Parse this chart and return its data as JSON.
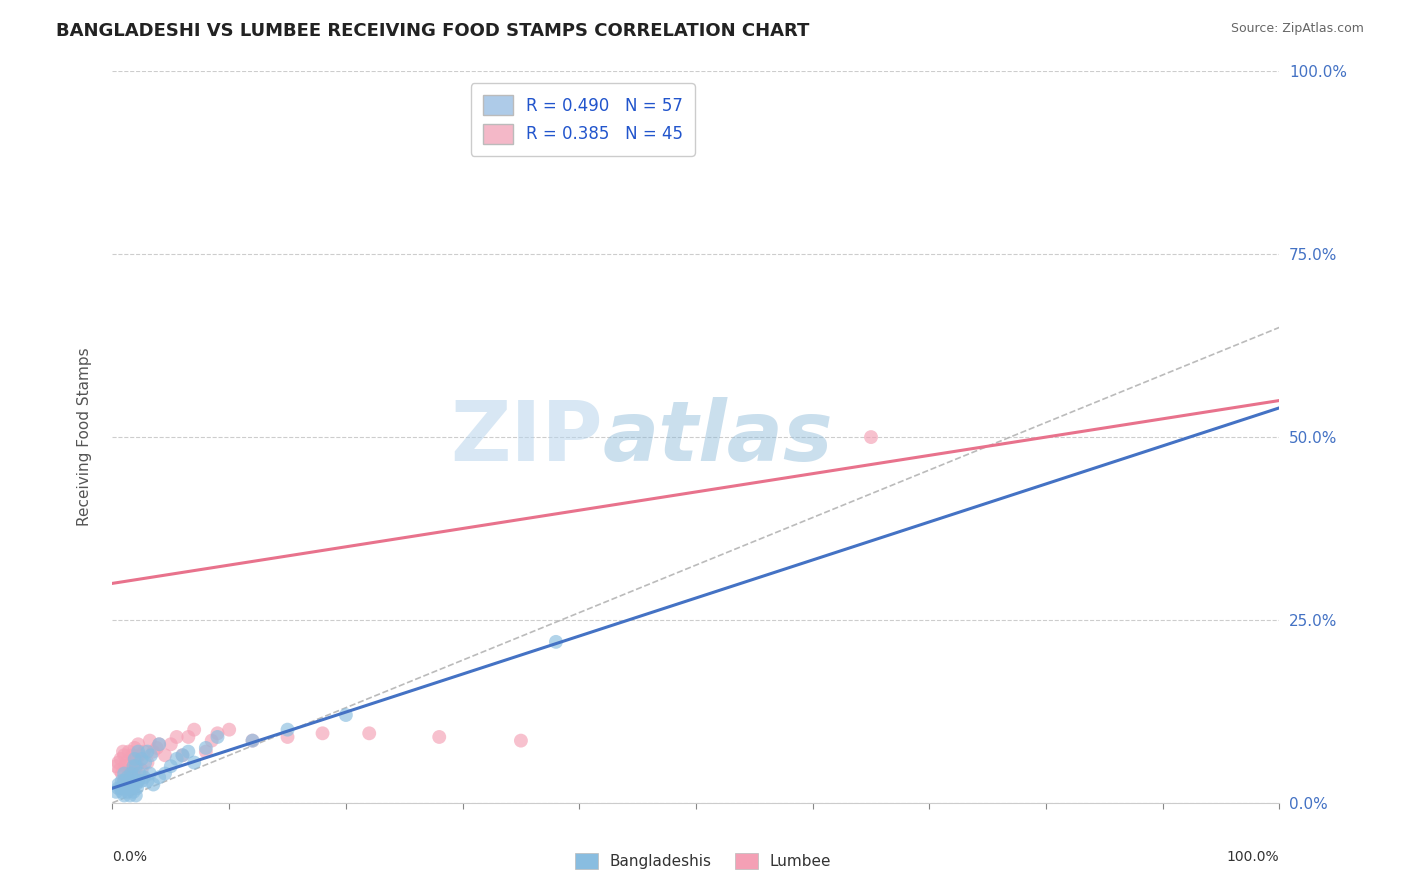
{
  "title": "BANGLADESHI VS LUMBEE RECEIVING FOOD STAMPS CORRELATION CHART",
  "source": "Source: ZipAtlas.com",
  "ylabel": "Receiving Food Stamps",
  "xlabel": "",
  "xlim": [
    0.0,
    1.0
  ],
  "ylim": [
    0.0,
    1.0
  ],
  "xticks": [
    0.0,
    0.1,
    0.2,
    0.3,
    0.4,
    0.5,
    0.6,
    0.7,
    0.8,
    0.9,
    1.0
  ],
  "xtick_labels_bottom": [
    "0.0%",
    "",
    "",
    "",
    "",
    "",
    "",
    "",
    "",
    "",
    "100.0%"
  ],
  "yticks": [
    0.0,
    0.25,
    0.5,
    0.75,
    1.0
  ],
  "ytick_labels_right": [
    "0.0%",
    "25.0%",
    "50.0%",
    "75.0%",
    "100.0%"
  ],
  "bangladeshi_color": "#7ab0d8",
  "lumbee_color": "#f4a0b5",
  "bangladeshi_scatter_color": "#89bde0",
  "lumbee_scatter_color": "#f4a0b5",
  "trend_blue_color": "#4472c4",
  "trend_pink_color": "#e8728c",
  "legend_blue_fill": "#aecbe8",
  "legend_pink_fill": "#f4b8c8",
  "R_blue": 0.49,
  "N_blue": 57,
  "R_pink": 0.385,
  "N_pink": 45,
  "grid_color": "#c8c8c8",
  "background_color": "#ffffff",
  "watermark_zip": "ZIP",
  "watermark_atlas": "atlas",
  "blue_intercept": 0.02,
  "blue_slope": 0.52,
  "pink_intercept": 0.3,
  "pink_slope": 0.25,
  "bangladeshi_x": [
    0.003,
    0.005,
    0.005,
    0.007,
    0.008,
    0.008,
    0.009,
    0.01,
    0.01,
    0.01,
    0.01,
    0.012,
    0.012,
    0.013,
    0.013,
    0.015,
    0.015,
    0.015,
    0.016,
    0.016,
    0.017,
    0.017,
    0.018,
    0.018,
    0.018,
    0.019,
    0.019,
    0.02,
    0.02,
    0.02,
    0.021,
    0.022,
    0.022,
    0.023,
    0.025,
    0.025,
    0.027,
    0.028,
    0.03,
    0.03,
    0.032,
    0.033,
    0.035,
    0.04,
    0.04,
    0.045,
    0.05,
    0.055,
    0.06,
    0.065,
    0.07,
    0.08,
    0.09,
    0.12,
    0.15,
    0.2,
    0.38
  ],
  "bangladeshi_y": [
    0.015,
    0.02,
    0.025,
    0.02,
    0.015,
    0.03,
    0.02,
    0.01,
    0.02,
    0.03,
    0.04,
    0.02,
    0.025,
    0.015,
    0.035,
    0.01,
    0.02,
    0.03,
    0.025,
    0.04,
    0.02,
    0.035,
    0.015,
    0.025,
    0.05,
    0.03,
    0.06,
    0.01,
    0.025,
    0.05,
    0.02,
    0.03,
    0.07,
    0.04,
    0.03,
    0.06,
    0.035,
    0.055,
    0.03,
    0.07,
    0.04,
    0.065,
    0.025,
    0.035,
    0.08,
    0.04,
    0.05,
    0.06,
    0.065,
    0.07,
    0.055,
    0.075,
    0.09,
    0.085,
    0.1,
    0.12,
    0.22
  ],
  "lumbee_x": [
    0.003,
    0.005,
    0.006,
    0.007,
    0.008,
    0.009,
    0.01,
    0.01,
    0.011,
    0.012,
    0.013,
    0.014,
    0.015,
    0.016,
    0.017,
    0.018,
    0.019,
    0.02,
    0.021,
    0.022,
    0.023,
    0.025,
    0.027,
    0.03,
    0.032,
    0.035,
    0.038,
    0.04,
    0.045,
    0.05,
    0.055,
    0.06,
    0.065,
    0.07,
    0.08,
    0.085,
    0.09,
    0.1,
    0.12,
    0.15,
    0.18,
    0.22,
    0.28,
    0.35,
    0.65
  ],
  "lumbee_y": [
    0.05,
    0.055,
    0.045,
    0.06,
    0.04,
    0.07,
    0.03,
    0.065,
    0.05,
    0.055,
    0.035,
    0.07,
    0.045,
    0.055,
    0.065,
    0.04,
    0.075,
    0.06,
    0.05,
    0.08,
    0.065,
    0.045,
    0.07,
    0.055,
    0.085,
    0.07,
    0.075,
    0.08,
    0.065,
    0.08,
    0.09,
    0.065,
    0.09,
    0.1,
    0.07,
    0.085,
    0.095,
    0.1,
    0.085,
    0.09,
    0.095,
    0.095,
    0.09,
    0.085,
    0.5
  ]
}
